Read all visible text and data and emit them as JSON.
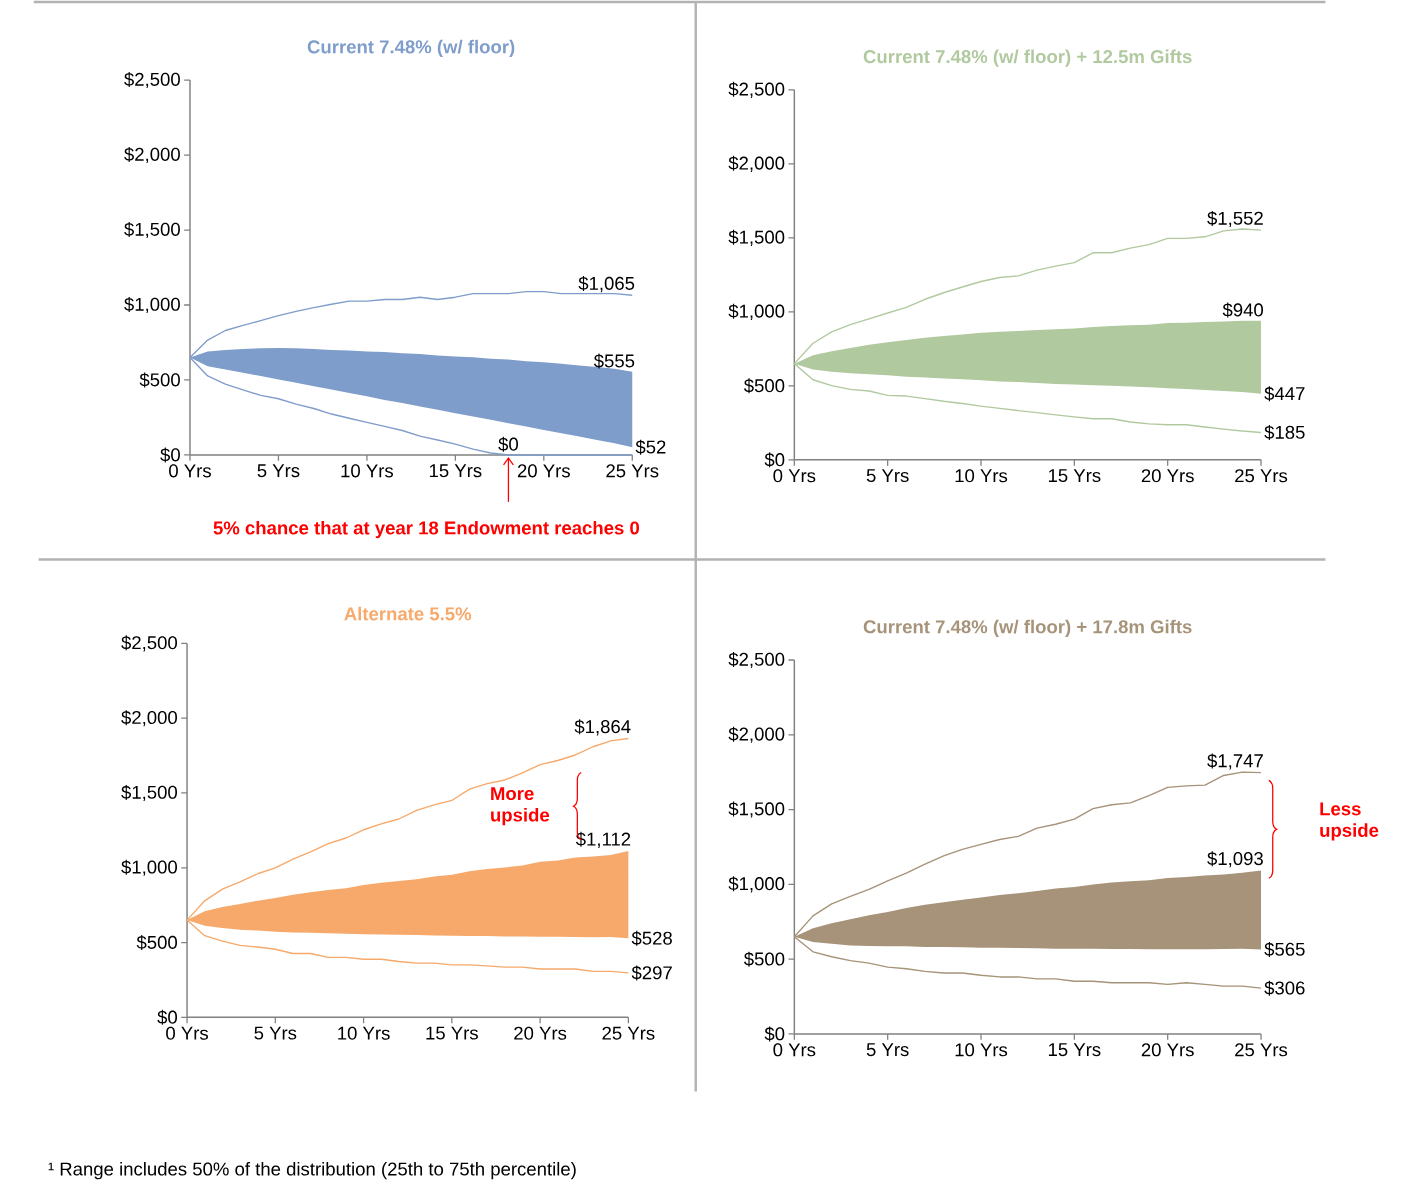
{
  "chart_data": [
    {
      "type": "line",
      "title": "Current 7.48% (w/ floor)",
      "x": [
        0,
        1,
        2,
        3,
        4,
        5,
        6,
        7,
        8,
        9,
        10,
        11,
        12,
        13,
        14,
        15,
        16,
        17,
        18,
        19,
        20,
        21,
        22,
        23,
        24,
        25
      ],
      "xlim": [
        0,
        25
      ],
      "xticks": [
        {
          "value": 0,
          "label": "0 Yrs"
        },
        {
          "value": 5,
          "label": "5 Yrs"
        },
        {
          "value": 10,
          "label": "10 Yrs"
        },
        {
          "value": 15,
          "label": "15 Yrs"
        },
        {
          "value": 20,
          "label": "20 Yrs"
        },
        {
          "value": 25,
          "label": "25 Yrs"
        }
      ],
      "ylim": [
        0,
        2500
      ],
      "yticks": [
        {
          "value": 0,
          "label": "$0"
        },
        {
          "value": 500,
          "label": "$500"
        },
        {
          "value": 1000,
          "label": "$1,000"
        },
        {
          "value": 1500,
          "label": "$1,500"
        },
        {
          "value": 2000,
          "label": "$2,000"
        },
        {
          "value": 2500,
          "label": "$2,500"
        }
      ],
      "series": [
        {
          "type": "area",
          "color": "#7f9dca",
          "values": [
            null,
            null,
            null,
            null,
            null,
            null,
            null,
            null,
            null,
            null,
            null,
            null,
            null,
            null,
            null,
            null,
            null,
            null,
            null,
            null,
            null,
            null,
            null,
            null,
            null,
            null
          ],
          "upper": [
            650,
            690,
            700,
            707,
            711,
            713,
            711,
            707,
            700,
            696,
            690,
            686,
            679,
            673,
            664,
            657,
            651,
            642,
            636,
            625,
            618,
            608,
            597,
            586,
            575,
            555
          ],
          "lower": [
            650,
            592,
            570,
            548,
            526,
            503,
            481,
            459,
            436,
            414,
            391,
            367,
            347,
            324,
            302,
            279,
            257,
            235,
            212,
            190,
            167,
            145,
            123,
            100,
            78,
            52
          ]
        },
        {
          "type": "line",
          "color": "#7f9dca",
          "values": [
            650,
            766,
            830,
            864,
            896,
            929,
            957,
            983,
            1005,
            1026,
            1026,
            1037,
            1037,
            1052,
            1037,
            1052,
            1076,
            1076,
            1076,
            1089,
            1089,
            1076,
            1076,
            1076,
            1076,
            1065
          ],
          "value_labels": [
            null,
            null,
            null,
            null,
            null,
            null,
            null,
            null,
            null,
            null,
            null,
            null,
            null,
            null,
            null,
            null,
            null,
            null,
            null,
            null,
            null,
            null,
            null,
            null,
            null,
            "$1,065"
          ]
        },
        {
          "type": "line",
          "color": "#7f9dca",
          "values": [
            650,
            527,
            473,
            434,
            397,
            375,
            339,
            310,
            273,
            245,
            217,
            191,
            163,
            126,
            100,
            72,
            39,
            13,
            0,
            0,
            0,
            0,
            0,
            0,
            0,
            0
          ],
          "value_labels": [
            null,
            null,
            null,
            null,
            null,
            null,
            null,
            null,
            null,
            null,
            null,
            null,
            null,
            null,
            null,
            null,
            null,
            null,
            "$0",
            null,
            null,
            null,
            null,
            null,
            null,
            null
          ]
        }
      ],
      "annotations": [
        "$555",
        "$52",
        "**5% chance that at year 18 Endowment reaches 0**"
      ]
    },
    {
      "type": "line",
      "title": "Current 7.48% (w/ floor) + 12.5m Gifts",
      "x": [
        0,
        1,
        2,
        3,
        4,
        5,
        6,
        7,
        8,
        9,
        10,
        11,
        12,
        13,
        14,
        15,
        16,
        17,
        18,
        19,
        20,
        21,
        22,
        23,
        24,
        25
      ],
      "xlim": [
        0,
        25
      ],
      "xticks": [
        {
          "value": 0,
          "label": "0 Yrs"
        },
        {
          "value": 5,
          "label": "5 Yrs"
        },
        {
          "value": 10,
          "label": "10 Yrs"
        },
        {
          "value": 15,
          "label": "15 Yrs"
        },
        {
          "value": 20,
          "label": "20 Yrs"
        },
        {
          "value": 25,
          "label": "25 Yrs"
        }
      ],
      "ylim": [
        0,
        2500
      ],
      "yticks": [
        {
          "value": 0,
          "label": "$0"
        },
        {
          "value": 500,
          "label": "$500"
        },
        {
          "value": 1000,
          "label": "$1,000"
        },
        {
          "value": 1500,
          "label": "$1,500"
        },
        {
          "value": 2000,
          "label": "$2,000"
        },
        {
          "value": 2500,
          "label": "$2,500"
        }
      ],
      "series": [
        {
          "type": "area",
          "color": "#b1c99f",
          "values": [
            null,
            null,
            null,
            null,
            null,
            null,
            null,
            null,
            null,
            null,
            null,
            null,
            null,
            null,
            null,
            null,
            null,
            null,
            null,
            null,
            null,
            null,
            null,
            null,
            null,
            null
          ],
          "upper": [
            650,
            706,
            733,
            755,
            777,
            795,
            810,
            825,
            836,
            847,
            858,
            865,
            871,
            878,
            882,
            887,
            898,
            904,
            909,
            913,
            924,
            926,
            931,
            935,
            939,
            940
          ],
          "lower": [
            650,
            611,
            596,
            585,
            579,
            572,
            561,
            557,
            550,
            544,
            537,
            530,
            526,
            520,
            513,
            509,
            504,
            500,
            495,
            491,
            484,
            478,
            472,
            465,
            458,
            447
          ]
        },
        {
          "type": "line",
          "color": "#b1c99f",
          "values": [
            650,
            788,
            865,
            913,
            953,
            992,
            1030,
            1085,
            1129,
            1168,
            1205,
            1232,
            1243,
            1282,
            1309,
            1333,
            1399,
            1399,
            1430,
            1454,
            1496,
            1496,
            1507,
            1547,
            1560,
            1552
          ],
          "value_labels": [
            null,
            null,
            null,
            null,
            null,
            null,
            null,
            null,
            null,
            null,
            null,
            null,
            null,
            null,
            null,
            null,
            null,
            null,
            null,
            null,
            null,
            null,
            null,
            null,
            null,
            "$1,552"
          ]
        },
        {
          "type": "line",
          "color": "#b1c99f",
          "values": [
            650,
            541,
            502,
            476,
            465,
            436,
            431,
            414,
            396,
            381,
            363,
            348,
            333,
            319,
            304,
            290,
            278,
            278,
            256,
            243,
            237,
            237,
            222,
            208,
            195,
            185
          ],
          "value_labels": [
            null,
            null,
            null,
            null,
            null,
            null,
            null,
            null,
            null,
            null,
            null,
            null,
            null,
            null,
            null,
            null,
            null,
            null,
            null,
            null,
            null,
            null,
            null,
            null,
            null,
            "$185"
          ]
        }
      ],
      "annotations": [
        "$940",
        "$447"
      ]
    },
    {
      "type": "line",
      "title": "Alternate 5.5%",
      "x": [
        0,
        1,
        2,
        3,
        4,
        5,
        6,
        7,
        8,
        9,
        10,
        11,
        12,
        13,
        14,
        15,
        16,
        17,
        18,
        19,
        20,
        21,
        22,
        23,
        24,
        25
      ],
      "xlim": [
        0,
        25
      ],
      "xticks": [
        {
          "value": 0,
          "label": "0 Yrs"
        },
        {
          "value": 5,
          "label": "5 Yrs"
        },
        {
          "value": 10,
          "label": "10 Yrs"
        },
        {
          "value": 15,
          "label": "15 Yrs"
        },
        {
          "value": 20,
          "label": "20 Yrs"
        },
        {
          "value": 25,
          "label": "25 Yrs"
        }
      ],
      "ylim": [
        0,
        2500
      ],
      "yticks": [
        {
          "value": 0,
          "label": "$0"
        },
        {
          "value": 500,
          "label": "$500"
        },
        {
          "value": 1000,
          "label": "$1,000"
        },
        {
          "value": 1500,
          "label": "$1,500"
        },
        {
          "value": 2000,
          "label": "$2,000"
        },
        {
          "value": 2500,
          "label": "$2,500"
        }
      ],
      "series": [
        {
          "type": "area",
          "color": "#f6a96b",
          "values": [
            null,
            null,
            null,
            null,
            null,
            null,
            null,
            null,
            null,
            null,
            null,
            null,
            null,
            null,
            null,
            null,
            null,
            null,
            null,
            null,
            null,
            null,
            null,
            null,
            null,
            null
          ],
          "upper": [
            650,
            710,
            737,
            758,
            780,
            797,
            819,
            837,
            852,
            863,
            885,
            900,
            911,
            924,
            941,
            954,
            976,
            991,
            1002,
            1015,
            1041,
            1048,
            1069,
            1076,
            1085,
            1112
          ],
          "lower": [
            650,
            612,
            597,
            586,
            580,
            573,
            568,
            565,
            563,
            558,
            555,
            554,
            552,
            550,
            547,
            545,
            543,
            543,
            541,
            541,
            539,
            539,
            537,
            536,
            537,
            528
          ]
        },
        {
          "type": "line",
          "color": "#f6a96b",
          "values": [
            650,
            779,
            857,
            905,
            960,
            999,
            1058,
            1106,
            1162,
            1199,
            1254,
            1293,
            1326,
            1384,
            1421,
            1450,
            1526,
            1563,
            1587,
            1635,
            1689,
            1717,
            1754,
            1809,
            1848,
            1864
          ],
          "value_labels": [
            null,
            null,
            null,
            null,
            null,
            null,
            null,
            null,
            null,
            null,
            null,
            null,
            null,
            null,
            null,
            null,
            null,
            null,
            null,
            null,
            null,
            null,
            null,
            null,
            null,
            "$1,864"
          ]
        },
        {
          "type": "line",
          "color": "#f6a96b",
          "values": [
            650,
            546,
            509,
            481,
            470,
            455,
            427,
            427,
            401,
            401,
            388,
            388,
            373,
            362,
            362,
            351,
            351,
            344,
            336,
            336,
            323,
            323,
            323,
            307,
            307,
            297
          ],
          "value_labels": [
            null,
            null,
            null,
            null,
            null,
            null,
            null,
            null,
            null,
            null,
            null,
            null,
            null,
            null,
            null,
            null,
            null,
            null,
            null,
            null,
            null,
            null,
            null,
            null,
            null,
            "$297"
          ]
        }
      ],
      "annotations": [
        "$1,112",
        "$528",
        "**More upside**",
        "¹ Range includes 50% of the distribution (25th to 75th percentile)"
      ]
    },
    {
      "type": "line",
      "title": "Current 7.48% (w/ floor) + 17.8m Gifts",
      "x": [
        0,
        1,
        2,
        3,
        4,
        5,
        6,
        7,
        8,
        9,
        10,
        11,
        12,
        13,
        14,
        15,
        16,
        17,
        18,
        19,
        20,
        21,
        22,
        23,
        24,
        25
      ],
      "xlim": [
        0,
        25
      ],
      "xticks": [
        {
          "value": 0,
          "label": "0 Yrs"
        },
        {
          "value": 5,
          "label": "5 Yrs"
        },
        {
          "value": 10,
          "label": "10 Yrs"
        },
        {
          "value": 15,
          "label": "15 Yrs"
        },
        {
          "value": 20,
          "label": "20 Yrs"
        },
        {
          "value": 25,
          "label": "25 Yrs"
        }
      ],
      "ylim": [
        0,
        2500
      ],
      "yticks": [
        {
          "value": 0,
          "label": "$0"
        },
        {
          "value": 500,
          "label": "$500"
        },
        {
          "value": 1000,
          "label": "$1,000"
        },
        {
          "value": 1500,
          "label": "$1,500"
        },
        {
          "value": 2000,
          "label": "$2,000"
        },
        {
          "value": 2500,
          "label": "$2,500"
        }
      ],
      "series": [
        {
          "type": "area",
          "color": "#a69379",
          "values": [
            null,
            null,
            null,
            null,
            null,
            null,
            null,
            null,
            null,
            null,
            null,
            null,
            null,
            null,
            null,
            null,
            null,
            null,
            null,
            null,
            null,
            null,
            null,
            null,
            null,
            null
          ],
          "upper": [
            650,
            707,
            740,
            766,
            794,
            816,
            842,
            864,
            881,
            897,
            912,
            929,
            940,
            955,
            973,
            983,
            999,
            1012,
            1020,
            1027,
            1042,
            1049,
            1060,
            1066,
            1077,
            1093
          ],
          "lower": [
            650,
            614,
            603,
            592,
            588,
            586,
            586,
            581,
            581,
            579,
            577,
            577,
            575,
            573,
            570,
            570,
            570,
            568,
            568,
            566,
            566,
            566,
            566,
            568,
            570,
            565
          ]
        },
        {
          "type": "line",
          "color": "#a69379",
          "values": [
            650,
            789,
            869,
            919,
            966,
            1023,
            1075,
            1136,
            1190,
            1234,
            1267,
            1300,
            1321,
            1376,
            1402,
            1436,
            1506,
            1532,
            1545,
            1593,
            1648,
            1658,
            1663,
            1728,
            1750,
            1747
          ],
          "value_labels": [
            null,
            null,
            null,
            null,
            null,
            null,
            null,
            null,
            null,
            null,
            null,
            null,
            null,
            null,
            null,
            null,
            null,
            null,
            null,
            null,
            null,
            null,
            null,
            null,
            null,
            "$1,747"
          ]
        },
        {
          "type": "line",
          "color": "#a69379",
          "values": [
            650,
            549,
            516,
            490,
            473,
            447,
            436,
            418,
            407,
            407,
            392,
            381,
            381,
            368,
            368,
            352,
            352,
            342,
            342,
            342,
            331,
            342,
            331,
            320,
            320,
            306
          ],
          "value_labels": [
            null,
            null,
            null,
            null,
            null,
            null,
            null,
            null,
            null,
            null,
            null,
            null,
            null,
            null,
            null,
            null,
            null,
            null,
            null,
            null,
            null,
            null,
            null,
            null,
            null,
            "$306"
          ]
        }
      ],
      "annotations": [
        "$1,093",
        "$565",
        "**Less upside**"
      ]
    }
  ]
}
